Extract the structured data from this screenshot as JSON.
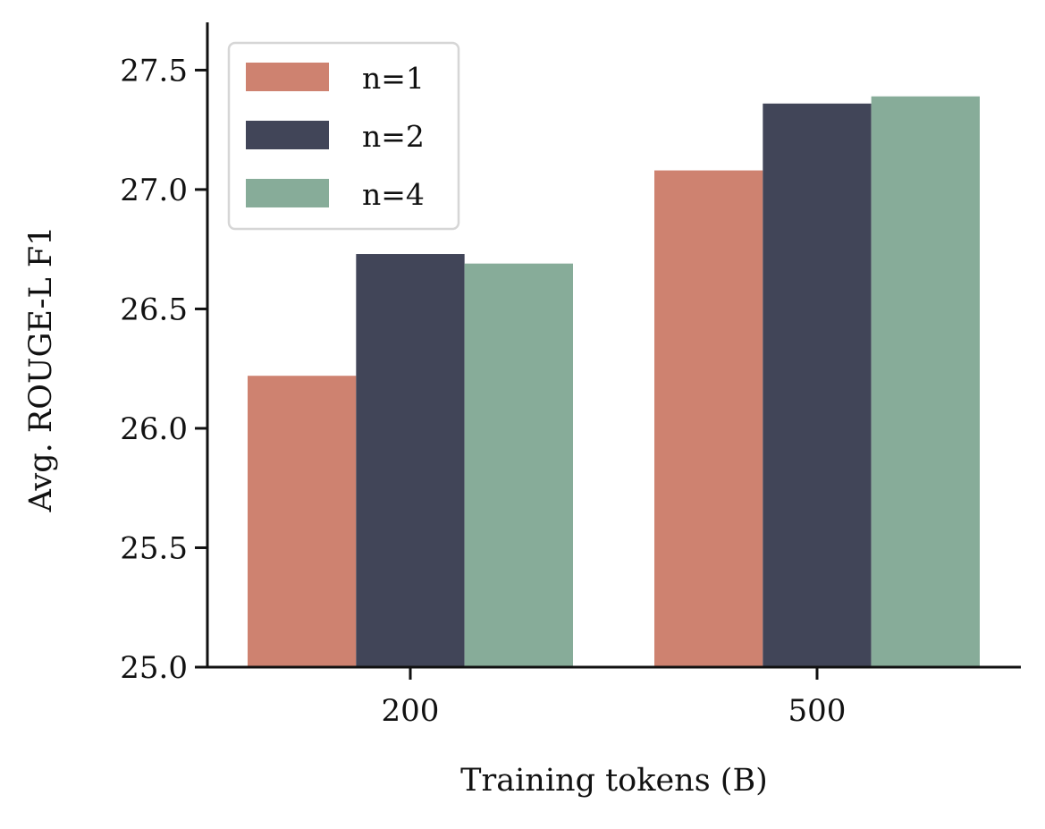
{
  "chart_data": {
    "type": "bar",
    "categories": [
      "200",
      "500"
    ],
    "series": [
      {
        "name": "n=1",
        "values": [
          26.22,
          27.08
        ],
        "color": "#CE8270"
      },
      {
        "name": "n=2",
        "values": [
          26.73,
          27.36
        ],
        "color": "#414558"
      },
      {
        "name": "n=4",
        "values": [
          26.69,
          27.39
        ],
        "color": "#87AC99"
      }
    ],
    "title": "",
    "xlabel": "Training tokens (B)",
    "ylabel": "Avg. ROUGE-L F1",
    "ylim": [
      25.0,
      27.7
    ],
    "yticks": [
      25.0,
      25.5,
      26.0,
      26.5,
      27.0,
      27.5
    ],
    "ytick_labels": [
      "25.0",
      "25.5",
      "26.0",
      "26.5",
      "27.0",
      "27.5"
    ],
    "grid": false,
    "legend_position": "top-left",
    "spines": "left-bottom"
  }
}
